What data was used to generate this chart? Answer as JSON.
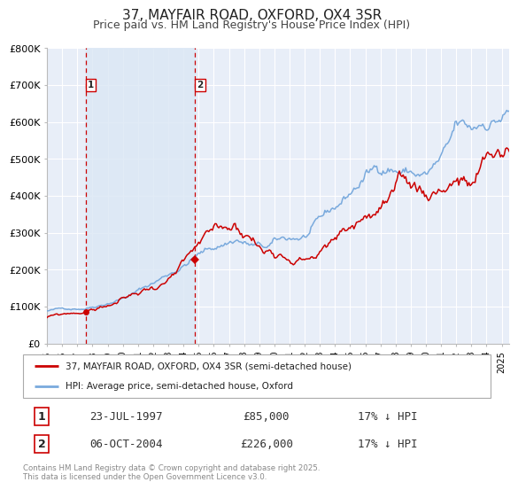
{
  "title": "37, MAYFAIR ROAD, OXFORD, OX4 3SR",
  "subtitle": "Price paid vs. HM Land Registry's House Price Index (HPI)",
  "title_fontsize": 11,
  "subtitle_fontsize": 9,
  "background_color": "#ffffff",
  "plot_bg_color": "#e8eef8",
  "grid_color": "#ffffff",
  "ylim": [
    0,
    800000
  ],
  "yticks": [
    0,
    100000,
    200000,
    300000,
    400000,
    500000,
    600000,
    700000,
    800000
  ],
  "ytick_labels": [
    "£0",
    "£100K",
    "£200K",
    "£300K",
    "£400K",
    "£500K",
    "£600K",
    "£700K",
    "£800K"
  ],
  "xlim_start": 1995.0,
  "xlim_end": 2025.5,
  "xtick_years": [
    1995,
    1996,
    1997,
    1998,
    1999,
    2000,
    2001,
    2002,
    2003,
    2004,
    2005,
    2006,
    2007,
    2008,
    2009,
    2010,
    2011,
    2012,
    2013,
    2014,
    2015,
    2016,
    2017,
    2018,
    2019,
    2020,
    2021,
    2022,
    2023,
    2024,
    2025
  ],
  "purchase1_x": 1997.55,
  "purchase1_y": 85000,
  "purchase2_x": 2004.77,
  "purchase2_y": 226000,
  "purchase1_date": "23-JUL-1997",
  "purchase1_price": "£85,000",
  "purchase1_hpi": "17% ↓ HPI",
  "purchase2_date": "06-OCT-2004",
  "purchase2_price": "£226,000",
  "purchase2_hpi": "17% ↓ HPI",
  "red_color": "#cc0000",
  "blue_color": "#7aaadd",
  "legend_label_red": "37, MAYFAIR ROAD, OXFORD, OX4 3SR (semi-detached house)",
  "legend_label_blue": "HPI: Average price, semi-detached house, Oxford",
  "footer_text": "Contains HM Land Registry data © Crown copyright and database right 2025.\nThis data is licensed under the Open Government Licence v3.0.",
  "highlight_bg": "#dce8f5"
}
